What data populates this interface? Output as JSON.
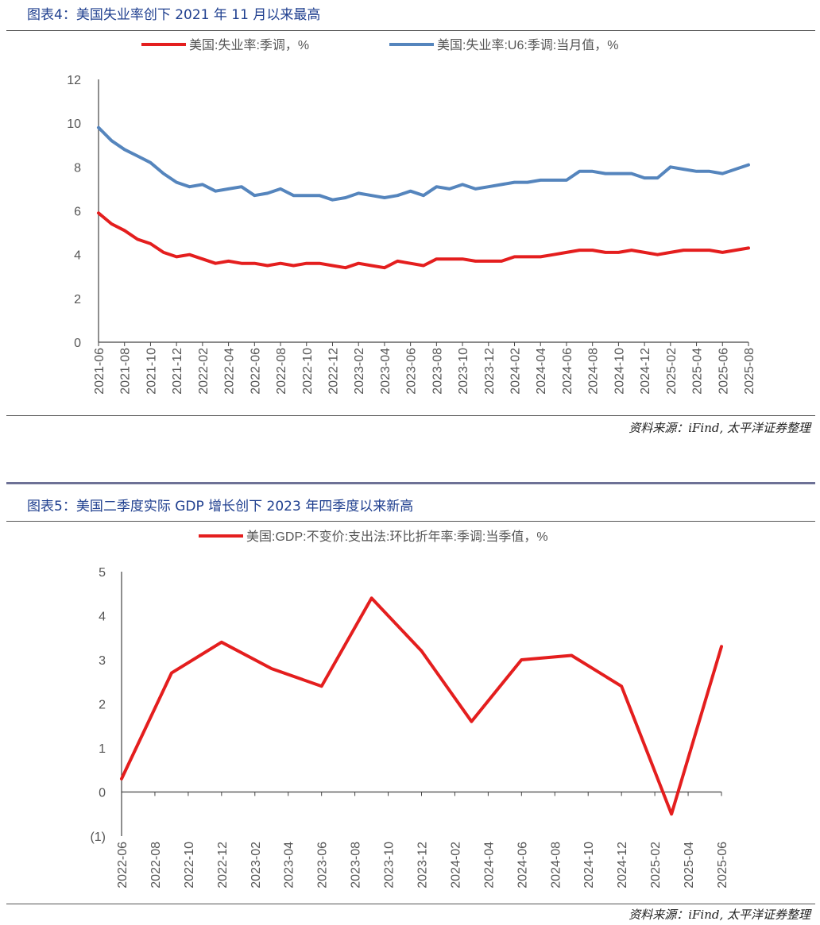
{
  "figure4": {
    "title": "图表4：美国失业率创下 2021 年 11 月以来最高",
    "source": "资料来源：iFind, 太平洋证券整理",
    "chart_data": {
      "type": "line",
      "x": [
        "2021-06",
        "2021-07",
        "2021-08",
        "2021-09",
        "2021-10",
        "2021-11",
        "2021-12",
        "2022-01",
        "2022-02",
        "2022-03",
        "2022-04",
        "2022-05",
        "2022-06",
        "2022-07",
        "2022-08",
        "2022-09",
        "2022-10",
        "2022-11",
        "2022-12",
        "2023-01",
        "2023-02",
        "2023-03",
        "2023-04",
        "2023-05",
        "2023-06",
        "2023-07",
        "2023-08",
        "2023-09",
        "2023-10",
        "2023-11",
        "2023-12",
        "2024-01",
        "2024-02",
        "2024-03",
        "2024-04",
        "2024-05",
        "2024-06",
        "2024-07",
        "2024-08",
        "2024-09",
        "2024-10",
        "2024-11",
        "2024-12",
        "2025-01",
        "2025-02",
        "2025-03",
        "2025-04",
        "2025-05",
        "2025-06",
        "2025-07",
        "2025-08"
      ],
      "x_tick_labels": [
        "2021-06",
        "2021-08",
        "2021-10",
        "2021-12",
        "2022-02",
        "2022-04",
        "2022-06",
        "2022-08",
        "2022-10",
        "2022-12",
        "2023-02",
        "2023-04",
        "2023-06",
        "2023-08",
        "2023-10",
        "2023-12",
        "2024-02",
        "2024-04",
        "2024-06",
        "2024-08",
        "2024-10",
        "2024-12",
        "2025-02",
        "2025-04",
        "2025-06",
        "2025-08"
      ],
      "series": [
        {
          "name": "美国:失业率:季调，%",
          "color": "#e41e1e",
          "values": [
            5.9,
            5.4,
            5.1,
            4.7,
            4.5,
            4.1,
            3.9,
            4.0,
            3.8,
            3.6,
            3.7,
            3.6,
            3.6,
            3.5,
            3.6,
            3.5,
            3.6,
            3.6,
            3.5,
            3.4,
            3.6,
            3.5,
            3.4,
            3.7,
            3.6,
            3.5,
            3.8,
            3.8,
            3.8,
            3.7,
            3.7,
            3.7,
            3.9,
            3.9,
            3.9,
            4.0,
            4.1,
            4.2,
            4.2,
            4.1,
            4.1,
            4.2,
            4.1,
            4.0,
            4.1,
            4.2,
            4.2,
            4.2,
            4.1,
            4.2,
            4.3
          ]
        },
        {
          "name": "美国:失业率:U6:季调:当月值，%",
          "color": "#5585bd",
          "values": [
            9.8,
            9.2,
            8.8,
            8.5,
            8.2,
            7.7,
            7.3,
            7.1,
            7.2,
            6.9,
            7.0,
            7.1,
            6.7,
            6.8,
            7.0,
            6.7,
            6.7,
            6.7,
            6.5,
            6.6,
            6.8,
            6.7,
            6.6,
            6.7,
            6.9,
            6.7,
            7.1,
            7.0,
            7.2,
            7.0,
            7.1,
            7.2,
            7.3,
            7.3,
            7.4,
            7.4,
            7.4,
            7.8,
            7.8,
            7.7,
            7.7,
            7.7,
            7.5,
            7.5,
            8.0,
            7.9,
            7.8,
            7.8,
            7.7,
            7.9,
            8.1
          ]
        }
      ],
      "yticks": [
        "0",
        "2",
        "4",
        "6",
        "8",
        "10",
        "12"
      ],
      "ylim": [
        0,
        12
      ]
    }
  },
  "figure5": {
    "title": "图表5：美国二季度实际 GDP 增长创下 2023 年四季度以来新高",
    "source": "资料来源：iFind, 太平洋证券整理",
    "chart_data": {
      "type": "line",
      "x": [
        "2022-06",
        "2022-09",
        "2022-12",
        "2023-03",
        "2023-06",
        "2023-09",
        "2023-12",
        "2024-03",
        "2024-06",
        "2024-09",
        "2024-12",
        "2025-03",
        "2025-06"
      ],
      "x_tick_labels": [
        "2022-06",
        "2022-08",
        "2022-10",
        "2022-12",
        "2023-02",
        "2023-04",
        "2023-06",
        "2023-08",
        "2023-10",
        "2023-12",
        "2024-02",
        "2024-04",
        "2024-06",
        "2024-08",
        "2024-10",
        "2024-12",
        "2025-02",
        "2025-04",
        "2025-06"
      ],
      "series": [
        {
          "name": "美国:GDP:不变价:支出法:环比折年率:季调:当季值，%",
          "color": "#e41e1e",
          "values": [
            0.3,
            2.7,
            3.4,
            2.8,
            2.4,
            4.4,
            3.2,
            1.6,
            3.0,
            3.1,
            2.4,
            -0.5,
            3.3
          ]
        }
      ],
      "yticks": [
        "(1)",
        "0",
        "1",
        "2",
        "3",
        "4",
        "5"
      ],
      "ylim": [
        -1,
        5
      ]
    }
  }
}
